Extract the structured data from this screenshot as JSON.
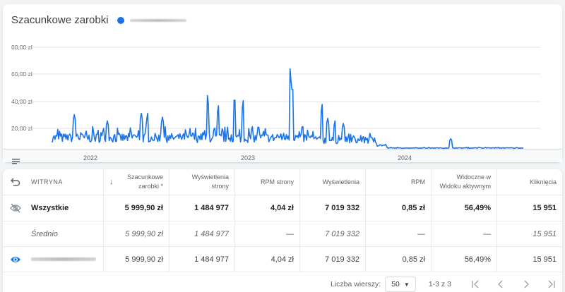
{
  "chart_card": {
    "title": "Szacunkowe zarobki",
    "legend": {
      "color": "#1a73e8",
      "label_redacted": true
    },
    "menu_icon": "menu-lines-icon"
  },
  "chart_data": {
    "type": "line",
    "title": "Szacunkowe zarobki",
    "xlabel": "",
    "ylabel": "",
    "ylim": [
      0,
      80
    ],
    "y_ticks": [
      "20,00 zł",
      "40,00 zł",
      "60,00 zł",
      "80,00 zł"
    ],
    "x_ticks": [
      "2022",
      "2023",
      "2024"
    ],
    "grid": true,
    "series": [
      {
        "name": "(redacted site)",
        "color": "#1a73e8",
        "description": "Daily earnings mostly 2–15 zł from late 2021 to late 2023 with spikes up to ~63 zł (mid-2023), dropping near 0 zł through 2024",
        "peaks": [
          {
            "x": "2022-01",
            "y": 27
          },
          {
            "x": "2022-04",
            "y": 25
          },
          {
            "x": "2022-08",
            "y": 28
          },
          {
            "x": "2022-09",
            "y": 28
          },
          {
            "x": "2022-10",
            "y": 42
          },
          {
            "x": "2022-12",
            "y": 45
          },
          {
            "x": "2023-01",
            "y": 44
          },
          {
            "x": "2023-02",
            "y": 42
          },
          {
            "x": "2023-05",
            "y": 63
          },
          {
            "x": "2023-08",
            "y": 35
          },
          {
            "x": "2023-09",
            "y": 24
          },
          {
            "x": "2024-06",
            "y": 8
          }
        ]
      }
    ]
  },
  "table": {
    "headers": [
      {
        "label": "",
        "icon": "undo-icon"
      },
      {
        "label": "WITRYNA"
      },
      {
        "label": "Szacunkowe zarobki *",
        "sort_icon": "arrow-down-icon"
      },
      {
        "label": "Wyświetlenia strony"
      },
      {
        "label": "RPM strony"
      },
      {
        "label": "Wyświetlenia"
      },
      {
        "label": "RPM"
      },
      {
        "label": "Widoczne w Widoku aktywnym"
      },
      {
        "label": "Kliknięcia"
      }
    ],
    "rows": [
      {
        "type": "total",
        "icon": "visibility-off-icon",
        "site": "Wszystkie",
        "earnings": "5 999,90 zł",
        "page_views": "1 484 977",
        "page_rpm": "4,04 zł",
        "impressions": "7 019 332",
        "rpm": "0,85 zł",
        "viewability": "56,49%",
        "clicks": "15 951"
      },
      {
        "type": "average",
        "icon": "",
        "site": "Średnio",
        "earnings": "5 999,90 zł",
        "page_views": "1 484 977",
        "page_rpm": "—",
        "impressions": "7 019 332",
        "rpm": "—",
        "viewability": "—",
        "clicks": "15 951"
      },
      {
        "type": "site",
        "icon": "visibility-icon",
        "site": "",
        "site_redacted": true,
        "earnings": "5 999,90 zł",
        "page_views": "1 484 977",
        "page_rpm": "4,04 zł",
        "impressions": "7 019 332",
        "rpm": "0,85 zł",
        "viewability": "56,49%",
        "clicks": "15 951"
      }
    ]
  },
  "pagination": {
    "rows_label": "Liczba wierszy:",
    "rows_value": "50",
    "range": "1-3 z 3",
    "buttons": [
      "first-page-icon",
      "prev-page-icon",
      "next-page-icon",
      "last-page-icon"
    ]
  }
}
